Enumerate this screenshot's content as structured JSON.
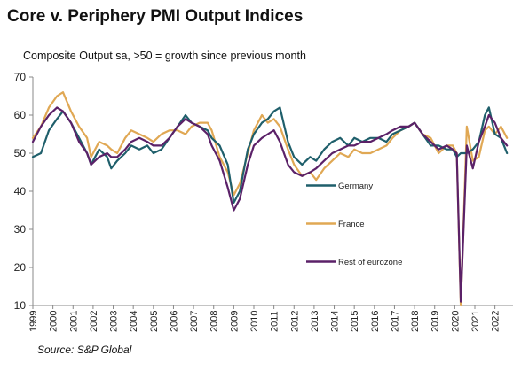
{
  "chart_data": {
    "type": "line",
    "title": "Core v. Periphery PMI Output Indices",
    "subtitle": "Composite Output sa, >50 = growth since previous  month",
    "source": "Source: S&P Global",
    "xlabel": "",
    "ylabel": "",
    "ylim": [
      10,
      70
    ],
    "yticks": [
      10,
      20,
      30,
      40,
      50,
      60,
      70
    ],
    "xlim": [
      1999,
      2022.9
    ],
    "xticks": [
      "1999",
      "2000",
      "2001",
      "2002",
      "2003",
      "2004",
      "2005",
      "2006",
      "2007",
      "2008",
      "2009",
      "2010",
      "2011",
      "2012",
      "2013",
      "2014",
      "2015",
      "2016",
      "2017",
      "2018",
      "2019",
      "2020",
      "2021",
      "2022"
    ],
    "grid": false,
    "legend_placement": "inside-bottom-center",
    "series": [
      {
        "name": "Germany",
        "color": "#1f5f6b",
        "x": [
          1999.0,
          1999.4,
          1999.8,
          2000.2,
          2000.5,
          2000.9,
          2001.3,
          2001.7,
          2001.9,
          2002.3,
          2002.7,
          2002.9,
          2003.2,
          2003.6,
          2003.9,
          2004.3,
          2004.7,
          2005.0,
          2005.4,
          2005.8,
          2006.2,
          2006.6,
          2006.9,
          2007.3,
          2007.7,
          2007.9,
          2008.3,
          2008.7,
          2009.0,
          2009.3,
          2009.7,
          2010.0,
          2010.4,
          2010.7,
          2011.0,
          2011.3,
          2011.7,
          2012.0,
          2012.4,
          2012.8,
          2013.1,
          2013.5,
          2013.9,
          2014.3,
          2014.7,
          2015.0,
          2015.4,
          2015.8,
          2016.2,
          2016.6,
          2016.9,
          2017.3,
          2017.7,
          2018.0,
          2018.4,
          2018.8,
          2019.2,
          2019.6,
          2019.9,
          2020.1,
          2020.3,
          2020.6,
          2020.9,
          2021.2,
          2021.5,
          2021.7,
          2022.0,
          2022.3,
          2022.6
        ],
        "values": [
          49,
          50,
          56,
          59,
          61,
          58,
          54,
          50,
          47,
          51,
          49,
          46,
          48,
          50,
          52,
          51,
          52,
          50,
          51,
          54,
          57,
          60,
          58,
          57,
          56,
          54,
          52,
          47,
          37,
          40,
          51,
          55,
          58,
          59,
          61,
          62,
          53,
          49,
          47,
          49,
          48,
          51,
          53,
          54,
          52,
          54,
          53,
          54,
          54,
          53,
          55,
          56,
          57,
          58,
          55,
          52,
          52,
          51,
          51,
          49,
          50,
          50,
          51,
          53,
          60,
          62,
          55,
          54,
          50
        ]
      },
      {
        "name": "France",
        "color": "#e0a854",
        "x": [
          1999.0,
          1999.4,
          1999.8,
          2000.2,
          2000.5,
          2000.9,
          2001.3,
          2001.7,
          2001.9,
          2002.3,
          2002.7,
          2002.9,
          2003.2,
          2003.6,
          2003.9,
          2004.3,
          2004.7,
          2005.0,
          2005.4,
          2005.8,
          2006.2,
          2006.6,
          2006.9,
          2007.3,
          2007.7,
          2007.9,
          2008.3,
          2008.7,
          2009.0,
          2009.3,
          2009.7,
          2010.0,
          2010.4,
          2010.7,
          2011.0,
          2011.3,
          2011.7,
          2012.0,
          2012.4,
          2012.8,
          2013.1,
          2013.5,
          2013.9,
          2014.3,
          2014.7,
          2015.0,
          2015.4,
          2015.8,
          2016.2,
          2016.6,
          2016.9,
          2017.3,
          2017.7,
          2018.0,
          2018.4,
          2018.8,
          2019.2,
          2019.6,
          2019.9,
          2020.1,
          2020.3,
          2020.6,
          2020.9,
          2021.2,
          2021.5,
          2021.7,
          2022.0,
          2022.3,
          2022.6
        ],
        "values": [
          54,
          57,
          62,
          65,
          66,
          61,
          57,
          54,
          49,
          53,
          52,
          51,
          50,
          54,
          56,
          55,
          54,
          53,
          55,
          56,
          56,
          55,
          57,
          58,
          58,
          56,
          49,
          45,
          39,
          42,
          50,
          56,
          60,
          58,
          59,
          57,
          51,
          47,
          44,
          45,
          43,
          46,
          48,
          50,
          49,
          51,
          50,
          50,
          51,
          52,
          54,
          56,
          57,
          58,
          55,
          54,
          50,
          52,
          52,
          50,
          10,
          57,
          48,
          49,
          56,
          57,
          55,
          57,
          54
        ]
      },
      {
        "name": "Rest of eurozone",
        "color": "#5b2168",
        "x": [
          1999.0,
          1999.4,
          1999.8,
          2000.2,
          2000.5,
          2000.9,
          2001.3,
          2001.7,
          2001.9,
          2002.3,
          2002.7,
          2002.9,
          2003.2,
          2003.6,
          2003.9,
          2004.3,
          2004.7,
          2005.0,
          2005.4,
          2005.8,
          2006.2,
          2006.6,
          2006.9,
          2007.3,
          2007.7,
          2007.9,
          2008.3,
          2008.7,
          2009.0,
          2009.3,
          2009.7,
          2010.0,
          2010.4,
          2010.7,
          2011.0,
          2011.3,
          2011.7,
          2012.0,
          2012.4,
          2012.8,
          2013.1,
          2013.5,
          2013.9,
          2014.3,
          2014.7,
          2015.0,
          2015.4,
          2015.8,
          2016.2,
          2016.6,
          2016.9,
          2017.3,
          2017.7,
          2018.0,
          2018.4,
          2018.8,
          2019.2,
          2019.6,
          2019.9,
          2020.1,
          2020.3,
          2020.6,
          2020.9,
          2021.2,
          2021.5,
          2021.7,
          2022.0,
          2022.3,
          2022.6
        ],
        "values": [
          53,
          57,
          60,
          62,
          61,
          58,
          53,
          50,
          47,
          49,
          50,
          49,
          49,
          51,
          53,
          54,
          53,
          52,
          52,
          54,
          57,
          59,
          58,
          57,
          55,
          52,
          48,
          41,
          35,
          38,
          47,
          52,
          54,
          55,
          56,
          53,
          47,
          45,
          44,
          45,
          46,
          48,
          50,
          51,
          52,
          52,
          53,
          53,
          54,
          55,
          56,
          57,
          57,
          58,
          55,
          53,
          51,
          52,
          51,
          50,
          11,
          52,
          46,
          53,
          57,
          60,
          58,
          54,
          52
        ]
      }
    ]
  }
}
